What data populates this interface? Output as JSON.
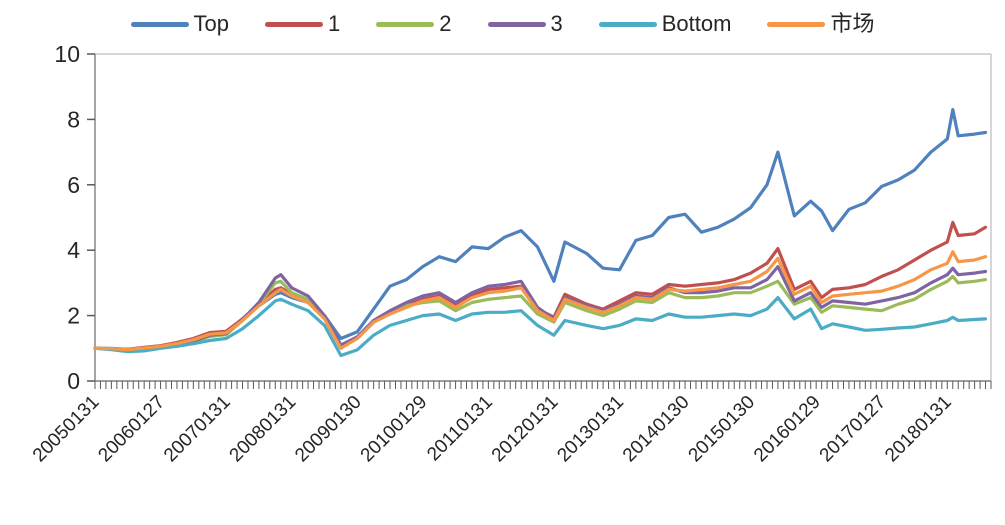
{
  "chart_data": {
    "type": "line",
    "title": "",
    "xlabel": "",
    "ylabel": "",
    "ylim": [
      0,
      10
    ],
    "y_ticks": [
      0,
      2,
      4,
      6,
      8,
      10
    ],
    "grid": false,
    "legend_position": "top",
    "plot_border_color": "#bfbfbf",
    "axis_color": "#7f7f7f",
    "tick_color": "#595959",
    "x_tick_labels": [
      "20050131",
      "20060127",
      "20070131",
      "20080131",
      "20090130",
      "20100129",
      "20110131",
      "20120131",
      "20130131",
      "20140130",
      "20150130",
      "20160129",
      "20170127",
      "20180131"
    ],
    "x_minor_tick_unit": "month",
    "dates": [
      "2005-01",
      "2005-04",
      "2005-07",
      "2005-10",
      "2006-01",
      "2006-04",
      "2006-07",
      "2006-10",
      "2007-01",
      "2007-04",
      "2007-07",
      "2007-10",
      "2007-11",
      "2008-01",
      "2008-04",
      "2008-07",
      "2008-10",
      "2009-01",
      "2009-04",
      "2009-07",
      "2009-10",
      "2010-01",
      "2010-04",
      "2010-07",
      "2010-10",
      "2011-01",
      "2011-04",
      "2011-07",
      "2011-10",
      "2012-01",
      "2012-03",
      "2012-07",
      "2012-10",
      "2013-01",
      "2013-04",
      "2013-07",
      "2013-10",
      "2014-01",
      "2014-04",
      "2014-07",
      "2014-10",
      "2015-01",
      "2015-04",
      "2015-06",
      "2015-09",
      "2015-12",
      "2016-02",
      "2016-04",
      "2016-07",
      "2016-10",
      "2017-01",
      "2017-04",
      "2017-07",
      "2017-10",
      "2018-01",
      "2018-02",
      "2018-03",
      "2018-06",
      "2018-08"
    ],
    "series": [
      {
        "id": "top",
        "name": "Top",
        "color": "#4F81BD",
        "values": [
          1.0,
          1.0,
          0.97,
          1.02,
          1.05,
          1.15,
          1.25,
          1.42,
          1.48,
          1.9,
          2.3,
          2.65,
          2.7,
          2.55,
          2.4,
          2.0,
          1.3,
          1.5,
          2.2,
          2.9,
          3.1,
          3.5,
          3.8,
          3.65,
          4.1,
          4.05,
          4.4,
          4.6,
          4.1,
          3.05,
          4.25,
          3.9,
          3.45,
          3.4,
          4.3,
          4.45,
          5.0,
          5.1,
          4.55,
          4.7,
          4.95,
          5.3,
          6.0,
          7.0,
          5.05,
          5.5,
          5.2,
          4.6,
          5.25,
          5.45,
          5.95,
          6.15,
          6.45,
          7.0,
          7.4,
          8.3,
          7.5,
          7.55,
          7.6
        ]
      },
      {
        "id": "rank1",
        "name": "1",
        "color": "#C0504D",
        "values": [
          1.0,
          0.99,
          0.97,
          1.03,
          1.08,
          1.18,
          1.3,
          1.48,
          1.52,
          1.9,
          2.35,
          2.8,
          2.85,
          2.65,
          2.45,
          1.95,
          1.05,
          1.3,
          1.8,
          2.1,
          2.3,
          2.5,
          2.6,
          2.3,
          2.6,
          2.8,
          2.85,
          2.9,
          2.2,
          1.95,
          2.65,
          2.35,
          2.2,
          2.45,
          2.7,
          2.65,
          2.95,
          2.9,
          2.95,
          3.0,
          3.1,
          3.3,
          3.6,
          4.05,
          2.8,
          3.05,
          2.55,
          2.8,
          2.85,
          2.95,
          3.2,
          3.4,
          3.7,
          4.0,
          4.25,
          4.85,
          4.45,
          4.5,
          4.7
        ]
      },
      {
        "id": "rank2",
        "name": "2",
        "color": "#9BBB59",
        "values": [
          1.0,
          0.98,
          0.95,
          0.99,
          1.03,
          1.1,
          1.2,
          1.36,
          1.42,
          1.85,
          2.35,
          3.0,
          3.05,
          2.7,
          2.5,
          1.95,
          1.05,
          1.3,
          1.8,
          2.05,
          2.3,
          2.4,
          2.45,
          2.15,
          2.4,
          2.5,
          2.55,
          2.6,
          2.05,
          1.8,
          2.4,
          2.15,
          2.0,
          2.2,
          2.45,
          2.4,
          2.7,
          2.55,
          2.55,
          2.6,
          2.7,
          2.7,
          2.9,
          3.05,
          2.35,
          2.55,
          2.1,
          2.3,
          2.25,
          2.2,
          2.15,
          2.35,
          2.5,
          2.8,
          3.05,
          3.2,
          3.0,
          3.05,
          3.1
        ]
      },
      {
        "id": "rank3",
        "name": "3",
        "color": "#8064A2",
        "values": [
          1.0,
          0.98,
          0.96,
          1.0,
          1.04,
          1.12,
          1.22,
          1.4,
          1.45,
          1.88,
          2.4,
          3.15,
          3.25,
          2.85,
          2.6,
          2.0,
          1.1,
          1.35,
          1.85,
          2.15,
          2.4,
          2.6,
          2.7,
          2.4,
          2.7,
          2.9,
          2.95,
          3.05,
          2.25,
          1.9,
          2.55,
          2.3,
          2.15,
          2.35,
          2.6,
          2.55,
          2.85,
          2.7,
          2.7,
          2.75,
          2.85,
          2.85,
          3.1,
          3.5,
          2.45,
          2.7,
          2.25,
          2.45,
          2.4,
          2.35,
          2.45,
          2.55,
          2.7,
          3.0,
          3.25,
          3.45,
          3.25,
          3.3,
          3.35
        ]
      },
      {
        "id": "bottom",
        "name": "Bottom",
        "color": "#4BACC6",
        "values": [
          1.0,
          0.96,
          0.9,
          0.92,
          1.0,
          1.06,
          1.14,
          1.24,
          1.3,
          1.6,
          2.0,
          2.45,
          2.5,
          2.35,
          2.15,
          1.7,
          0.78,
          0.95,
          1.4,
          1.7,
          1.85,
          2.0,
          2.05,
          1.85,
          2.05,
          2.1,
          2.1,
          2.15,
          1.7,
          1.4,
          1.85,
          1.7,
          1.6,
          1.7,
          1.9,
          1.85,
          2.05,
          1.95,
          1.95,
          2.0,
          2.05,
          2.0,
          2.2,
          2.55,
          1.9,
          2.2,
          1.6,
          1.75,
          1.65,
          1.55,
          1.58,
          1.62,
          1.65,
          1.75,
          1.85,
          1.95,
          1.85,
          1.88,
          1.9
        ]
      },
      {
        "id": "market",
        "name": "市场",
        "color": "#F79646",
        "values": [
          1.0,
          0.99,
          0.96,
          1.01,
          1.06,
          1.15,
          1.26,
          1.43,
          1.47,
          1.85,
          2.3,
          2.7,
          2.8,
          2.6,
          2.4,
          1.9,
          1.0,
          1.3,
          1.8,
          2.05,
          2.25,
          2.45,
          2.55,
          2.25,
          2.55,
          2.7,
          2.75,
          2.85,
          2.15,
          1.85,
          2.5,
          2.25,
          2.1,
          2.3,
          2.55,
          2.5,
          2.8,
          2.75,
          2.8,
          2.85,
          2.95,
          3.05,
          3.35,
          3.75,
          2.65,
          2.9,
          2.4,
          2.6,
          2.65,
          2.7,
          2.75,
          2.9,
          3.1,
          3.4,
          3.6,
          3.95,
          3.65,
          3.7,
          3.8
        ]
      }
    ]
  }
}
